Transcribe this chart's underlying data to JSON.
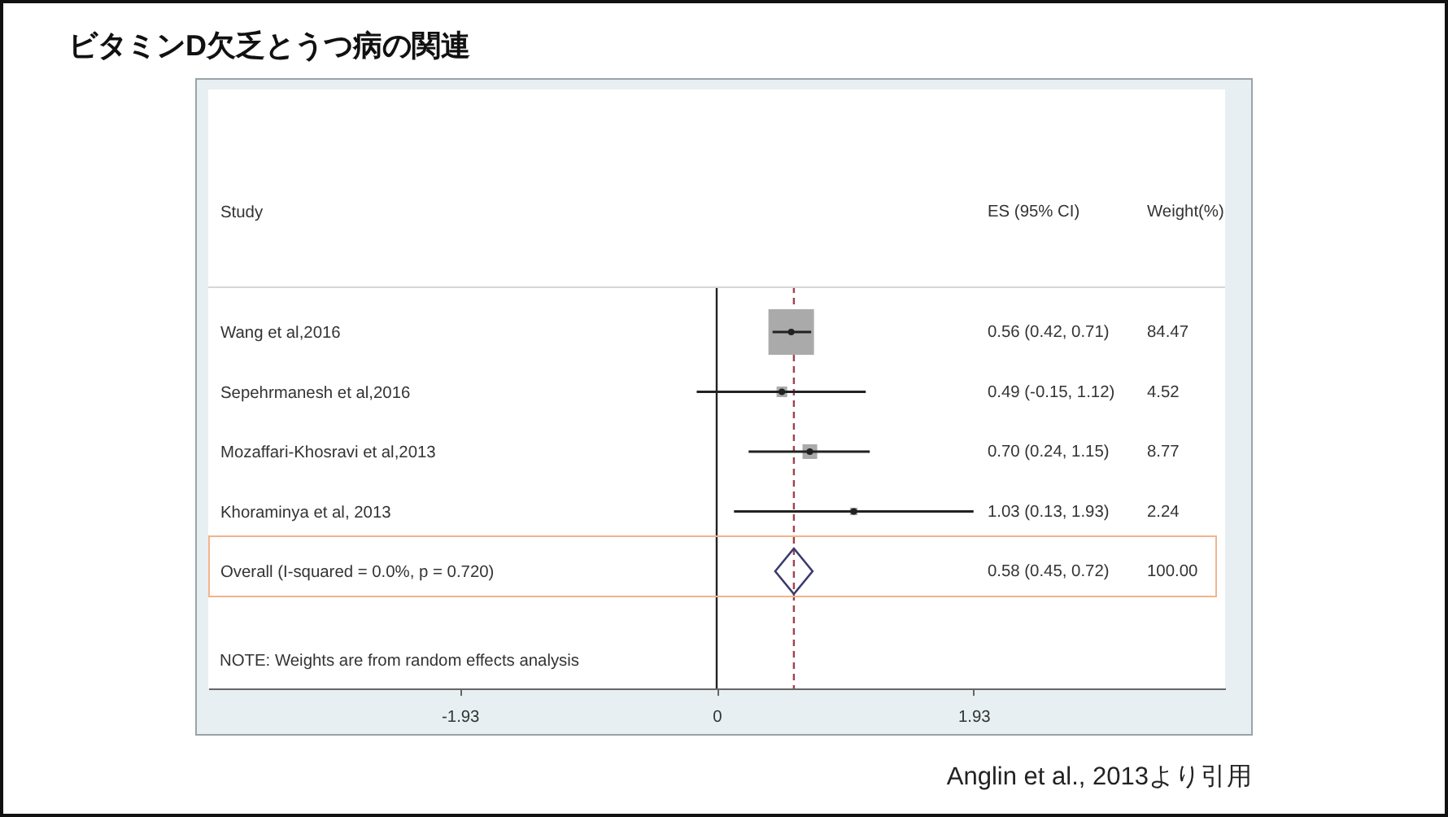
{
  "chart_data": {
    "type": "scatter",
    "title": "ビタミンD欠乏とうつ病の関連",
    "ylabel": "Study",
    "categories": [
      "Wang et al,2016",
      "Sepehrmanesh et al,2016",
      "Mozaffari-Khosravi et al,2013",
      "Khoraminya et al, 2013",
      "Overall (I-squared = 0.0%, p = 0.720)"
    ],
    "orientation": "horizontal",
    "series": [
      {
        "type": "bubble",
        "color": "#aaaaaa",
        "marker": "square",
        "values": [
          0.56,
          0.49,
          0.7,
          1.03,
          null
        ],
        "sizes": [
          1,
          0.054,
          0.104,
          0.027,
          null
        ]
      },
      {
        "type": "scatter",
        "color": "#222222",
        "marker": "circle",
        "values": [
          0.56,
          0.49,
          0.7,
          1.03,
          null
        ],
        "errors": [
          [
            0.42,
            0.71
          ],
          [
            -0.15,
            1.12
          ],
          [
            0.24,
            1.15
          ],
          [
            0.13,
            1.93
          ],
          null
        ]
      },
      {
        "type": "scatter",
        "color": "#3b3b6e",
        "marker": "diamond",
        "values": [
          null,
          null,
          null,
          null,
          0.58
        ]
      }
    ],
    "xlim": [
      -3.82,
      3.82
    ],
    "xticks": [
      -1.93,
      0,
      1.93
    ],
    "ref_lines": [
      {
        "axis": "x",
        "value": 0,
        "color": "#222222",
        "line_style": "solid"
      },
      {
        "axis": "x",
        "value": 0.58,
        "color": "#a2404c",
        "line_style": "dashed"
      }
    ],
    "annotations": [
      "ES (95% CI)",
      "Weight(%)",
      "0.56 (0.42, 0.71)",
      "84.47",
      "0.49 (-0.15, 1.12)",
      "4.52",
      "0.70 (0.24, 1.15)",
      "8.77",
      "1.03 (0.13, 1.93)",
      "2.24",
      "0.58 (0.45, 0.72)",
      "100.00",
      "NOTE: Weights are from random effects analysis",
      "Anglin et al., 2013より引用"
    ]
  }
}
